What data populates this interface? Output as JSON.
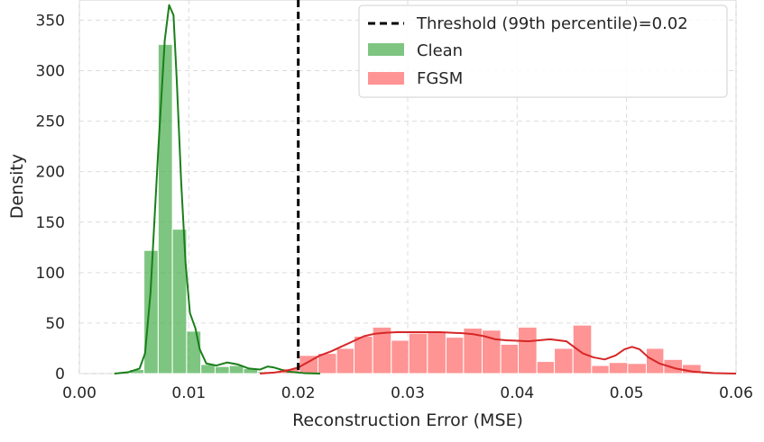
{
  "chart_data": {
    "type": "histogram",
    "xlabel": "Reconstruction Error (MSE)",
    "ylabel": "Density",
    "xlim": [
      0.0,
      0.06
    ],
    "ylim": [
      0,
      370
    ],
    "xticks": [
      "0.00",
      "0.01",
      "0.02",
      "0.03",
      "0.04",
      "0.05",
      "0.06"
    ],
    "xtick_values": [
      0.0,
      0.01,
      0.02,
      0.03,
      0.04,
      0.05,
      0.06
    ],
    "yticks": [
      "0",
      "50",
      "100",
      "150",
      "200",
      "250",
      "300",
      "350"
    ],
    "ytick_values": [
      0,
      50,
      100,
      150,
      200,
      250,
      300,
      350
    ],
    "grid": true,
    "legend_position": "top-right",
    "threshold": {
      "label": "Threshold (99th percentile)=0.02",
      "x": 0.02,
      "color": "#000000",
      "style": "dashed"
    },
    "series": [
      {
        "name": "Clean",
        "bar_color": "#4caf50",
        "kde_color": "#1a7f1a",
        "bins": [
          {
            "x0": 0.0046,
            "x1": 0.0059,
            "v": 4
          },
          {
            "x0": 0.0059,
            "x1": 0.0072,
            "v": 122
          },
          {
            "x0": 0.0072,
            "x1": 0.0085,
            "v": 326
          },
          {
            "x0": 0.0085,
            "x1": 0.0098,
            "v": 143
          },
          {
            "x0": 0.0098,
            "x1": 0.0111,
            "v": 42
          },
          {
            "x0": 0.0111,
            "x1": 0.0124,
            "v": 9
          },
          {
            "x0": 0.0124,
            "x1": 0.0137,
            "v": 7
          },
          {
            "x0": 0.0137,
            "x1": 0.015,
            "v": 8
          },
          {
            "x0": 0.015,
            "x1": 0.0163,
            "v": 5
          },
          {
            "x0": 0.0163,
            "x1": 0.0176,
            "v": 2
          }
        ],
        "kde": [
          [
            0.0032,
            0
          ],
          [
            0.0045,
            1.5
          ],
          [
            0.0055,
            5
          ],
          [
            0.006,
            20
          ],
          [
            0.0065,
            80
          ],
          [
            0.0072,
            220
          ],
          [
            0.0078,
            330
          ],
          [
            0.0082,
            365
          ],
          [
            0.0086,
            355
          ],
          [
            0.0089,
            290
          ],
          [
            0.0093,
            190
          ],
          [
            0.0097,
            110
          ],
          [
            0.0101,
            60
          ],
          [
            0.0106,
            45
          ],
          [
            0.011,
            24
          ],
          [
            0.0116,
            10
          ],
          [
            0.0125,
            8
          ],
          [
            0.0135,
            11
          ],
          [
            0.0145,
            9
          ],
          [
            0.0155,
            5
          ],
          [
            0.0165,
            4
          ],
          [
            0.0172,
            7
          ],
          [
            0.0178,
            6
          ],
          [
            0.019,
            2
          ],
          [
            0.0205,
            0.5
          ],
          [
            0.022,
            0
          ]
        ]
      },
      {
        "name": "FGSM",
        "bar_color": "#ff6b6b",
        "kde_color": "#d62728",
        "bins": [
          {
            "x0": 0.0168,
            "x1": 0.0185,
            "v": 2
          },
          {
            "x0": 0.0185,
            "x1": 0.0201,
            "v": 5
          },
          {
            "x0": 0.0201,
            "x1": 0.0218,
            "v": 18
          },
          {
            "x0": 0.0218,
            "x1": 0.0235,
            "v": 20
          },
          {
            "x0": 0.0235,
            "x1": 0.0251,
            "v": 25
          },
          {
            "x0": 0.0251,
            "x1": 0.0268,
            "v": 37
          },
          {
            "x0": 0.0268,
            "x1": 0.0285,
            "v": 46
          },
          {
            "x0": 0.0285,
            "x1": 0.0301,
            "v": 33
          },
          {
            "x0": 0.0301,
            "x1": 0.0318,
            "v": 40
          },
          {
            "x0": 0.0318,
            "x1": 0.0335,
            "v": 41
          },
          {
            "x0": 0.0335,
            "x1": 0.0351,
            "v": 36
          },
          {
            "x0": 0.0351,
            "x1": 0.0368,
            "v": 45
          },
          {
            "x0": 0.0368,
            "x1": 0.0385,
            "v": 43
          },
          {
            "x0": 0.0385,
            "x1": 0.0401,
            "v": 29
          },
          {
            "x0": 0.0401,
            "x1": 0.0418,
            "v": 46
          },
          {
            "x0": 0.0418,
            "x1": 0.0434,
            "v": 12
          },
          {
            "x0": 0.0434,
            "x1": 0.0451,
            "v": 25
          },
          {
            "x0": 0.0451,
            "x1": 0.0468,
            "v": 48
          },
          {
            "x0": 0.0468,
            "x1": 0.0484,
            "v": 8
          },
          {
            "x0": 0.0484,
            "x1": 0.0501,
            "v": 11
          },
          {
            "x0": 0.0501,
            "x1": 0.0518,
            "v": 10
          },
          {
            "x0": 0.0518,
            "x1": 0.0534,
            "v": 25
          },
          {
            "x0": 0.0534,
            "x1": 0.0551,
            "v": 14
          },
          {
            "x0": 0.0551,
            "x1": 0.0568,
            "v": 9
          }
        ],
        "kde": [
          [
            0.0165,
            0
          ],
          [
            0.0178,
            1
          ],
          [
            0.019,
            3
          ],
          [
            0.02,
            6
          ],
          [
            0.021,
            12
          ],
          [
            0.022,
            18
          ],
          [
            0.023,
            22
          ],
          [
            0.024,
            27
          ],
          [
            0.025,
            32
          ],
          [
            0.026,
            37
          ],
          [
            0.027,
            39.5
          ],
          [
            0.028,
            40.5
          ],
          [
            0.029,
            41
          ],
          [
            0.03,
            41
          ],
          [
            0.031,
            41
          ],
          [
            0.032,
            41
          ],
          [
            0.033,
            41
          ],
          [
            0.034,
            40.5
          ],
          [
            0.035,
            40
          ],
          [
            0.036,
            39
          ],
          [
            0.037,
            37
          ],
          [
            0.038,
            34
          ],
          [
            0.039,
            33
          ],
          [
            0.04,
            32.5
          ],
          [
            0.041,
            32
          ],
          [
            0.042,
            33
          ],
          [
            0.043,
            34
          ],
          [
            0.0445,
            32
          ],
          [
            0.046,
            20
          ],
          [
            0.047,
            16
          ],
          [
            0.048,
            14
          ],
          [
            0.049,
            18
          ],
          [
            0.0498,
            24
          ],
          [
            0.0505,
            26.5
          ],
          [
            0.0512,
            24
          ],
          [
            0.052,
            16
          ],
          [
            0.053,
            10
          ],
          [
            0.0545,
            5
          ],
          [
            0.056,
            2
          ],
          [
            0.058,
            0.5
          ],
          [
            0.06,
            0
          ]
        ]
      }
    ]
  }
}
